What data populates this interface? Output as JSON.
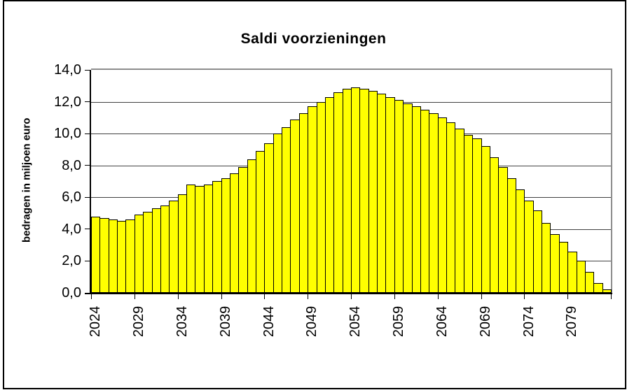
{
  "chart_data": {
    "type": "bar",
    "title": "Saldi voorzieningen",
    "xlabel": "",
    "ylabel": "bedragen in miljoen euro",
    "categories": [
      2024,
      2025,
      2026,
      2027,
      2028,
      2029,
      2030,
      2031,
      2032,
      2033,
      2034,
      2035,
      2036,
      2037,
      2038,
      2039,
      2040,
      2041,
      2042,
      2043,
      2044,
      2045,
      2046,
      2047,
      2048,
      2049,
      2050,
      2051,
      2052,
      2053,
      2054,
      2055,
      2056,
      2057,
      2058,
      2059,
      2060,
      2061,
      2062,
      2063,
      2064,
      2065,
      2066,
      2067,
      2068,
      2069,
      2070,
      2071,
      2072,
      2073,
      2074,
      2075,
      2076,
      2077,
      2078,
      2079,
      2080,
      2081,
      2082,
      2083
    ],
    "values": [
      4.8,
      4.7,
      4.6,
      4.5,
      4.6,
      4.9,
      5.1,
      5.3,
      5.5,
      5.8,
      6.2,
      6.8,
      6.7,
      6.8,
      7.0,
      7.2,
      7.5,
      7.9,
      8.4,
      8.9,
      9.4,
      10.0,
      10.4,
      10.9,
      11.3,
      11.7,
      12.0,
      12.3,
      12.6,
      12.8,
      12.9,
      12.8,
      12.7,
      12.5,
      12.3,
      12.1,
      11.9,
      11.7,
      11.5,
      11.3,
      11.0,
      10.7,
      10.3,
      9.9,
      9.7,
      9.2,
      8.5,
      7.9,
      7.2,
      6.5,
      5.8,
      5.2,
      4.4,
      3.7,
      3.2,
      2.6,
      2.0,
      1.3,
      0.6,
      0.2
    ],
    "ylim": [
      0,
      14
    ],
    "ytick_step": 2,
    "ytick_labels": [
      "0,0",
      "2,0",
      "4,0",
      "6,0",
      "8,0",
      "10,0",
      "12,0",
      "14,0"
    ],
    "xtick_labels": [
      "2024",
      "2029",
      "2034",
      "2039",
      "2044",
      "2049",
      "2054",
      "2059",
      "2064",
      "2069",
      "2074",
      "2079"
    ],
    "xtick_interval": 5,
    "grid": true,
    "legend": false,
    "bar_color": "#FFFF00",
    "bar_border_color": "#000000",
    "gridline_color": "#404040",
    "plot_border_color": "#8c8c8c"
  }
}
